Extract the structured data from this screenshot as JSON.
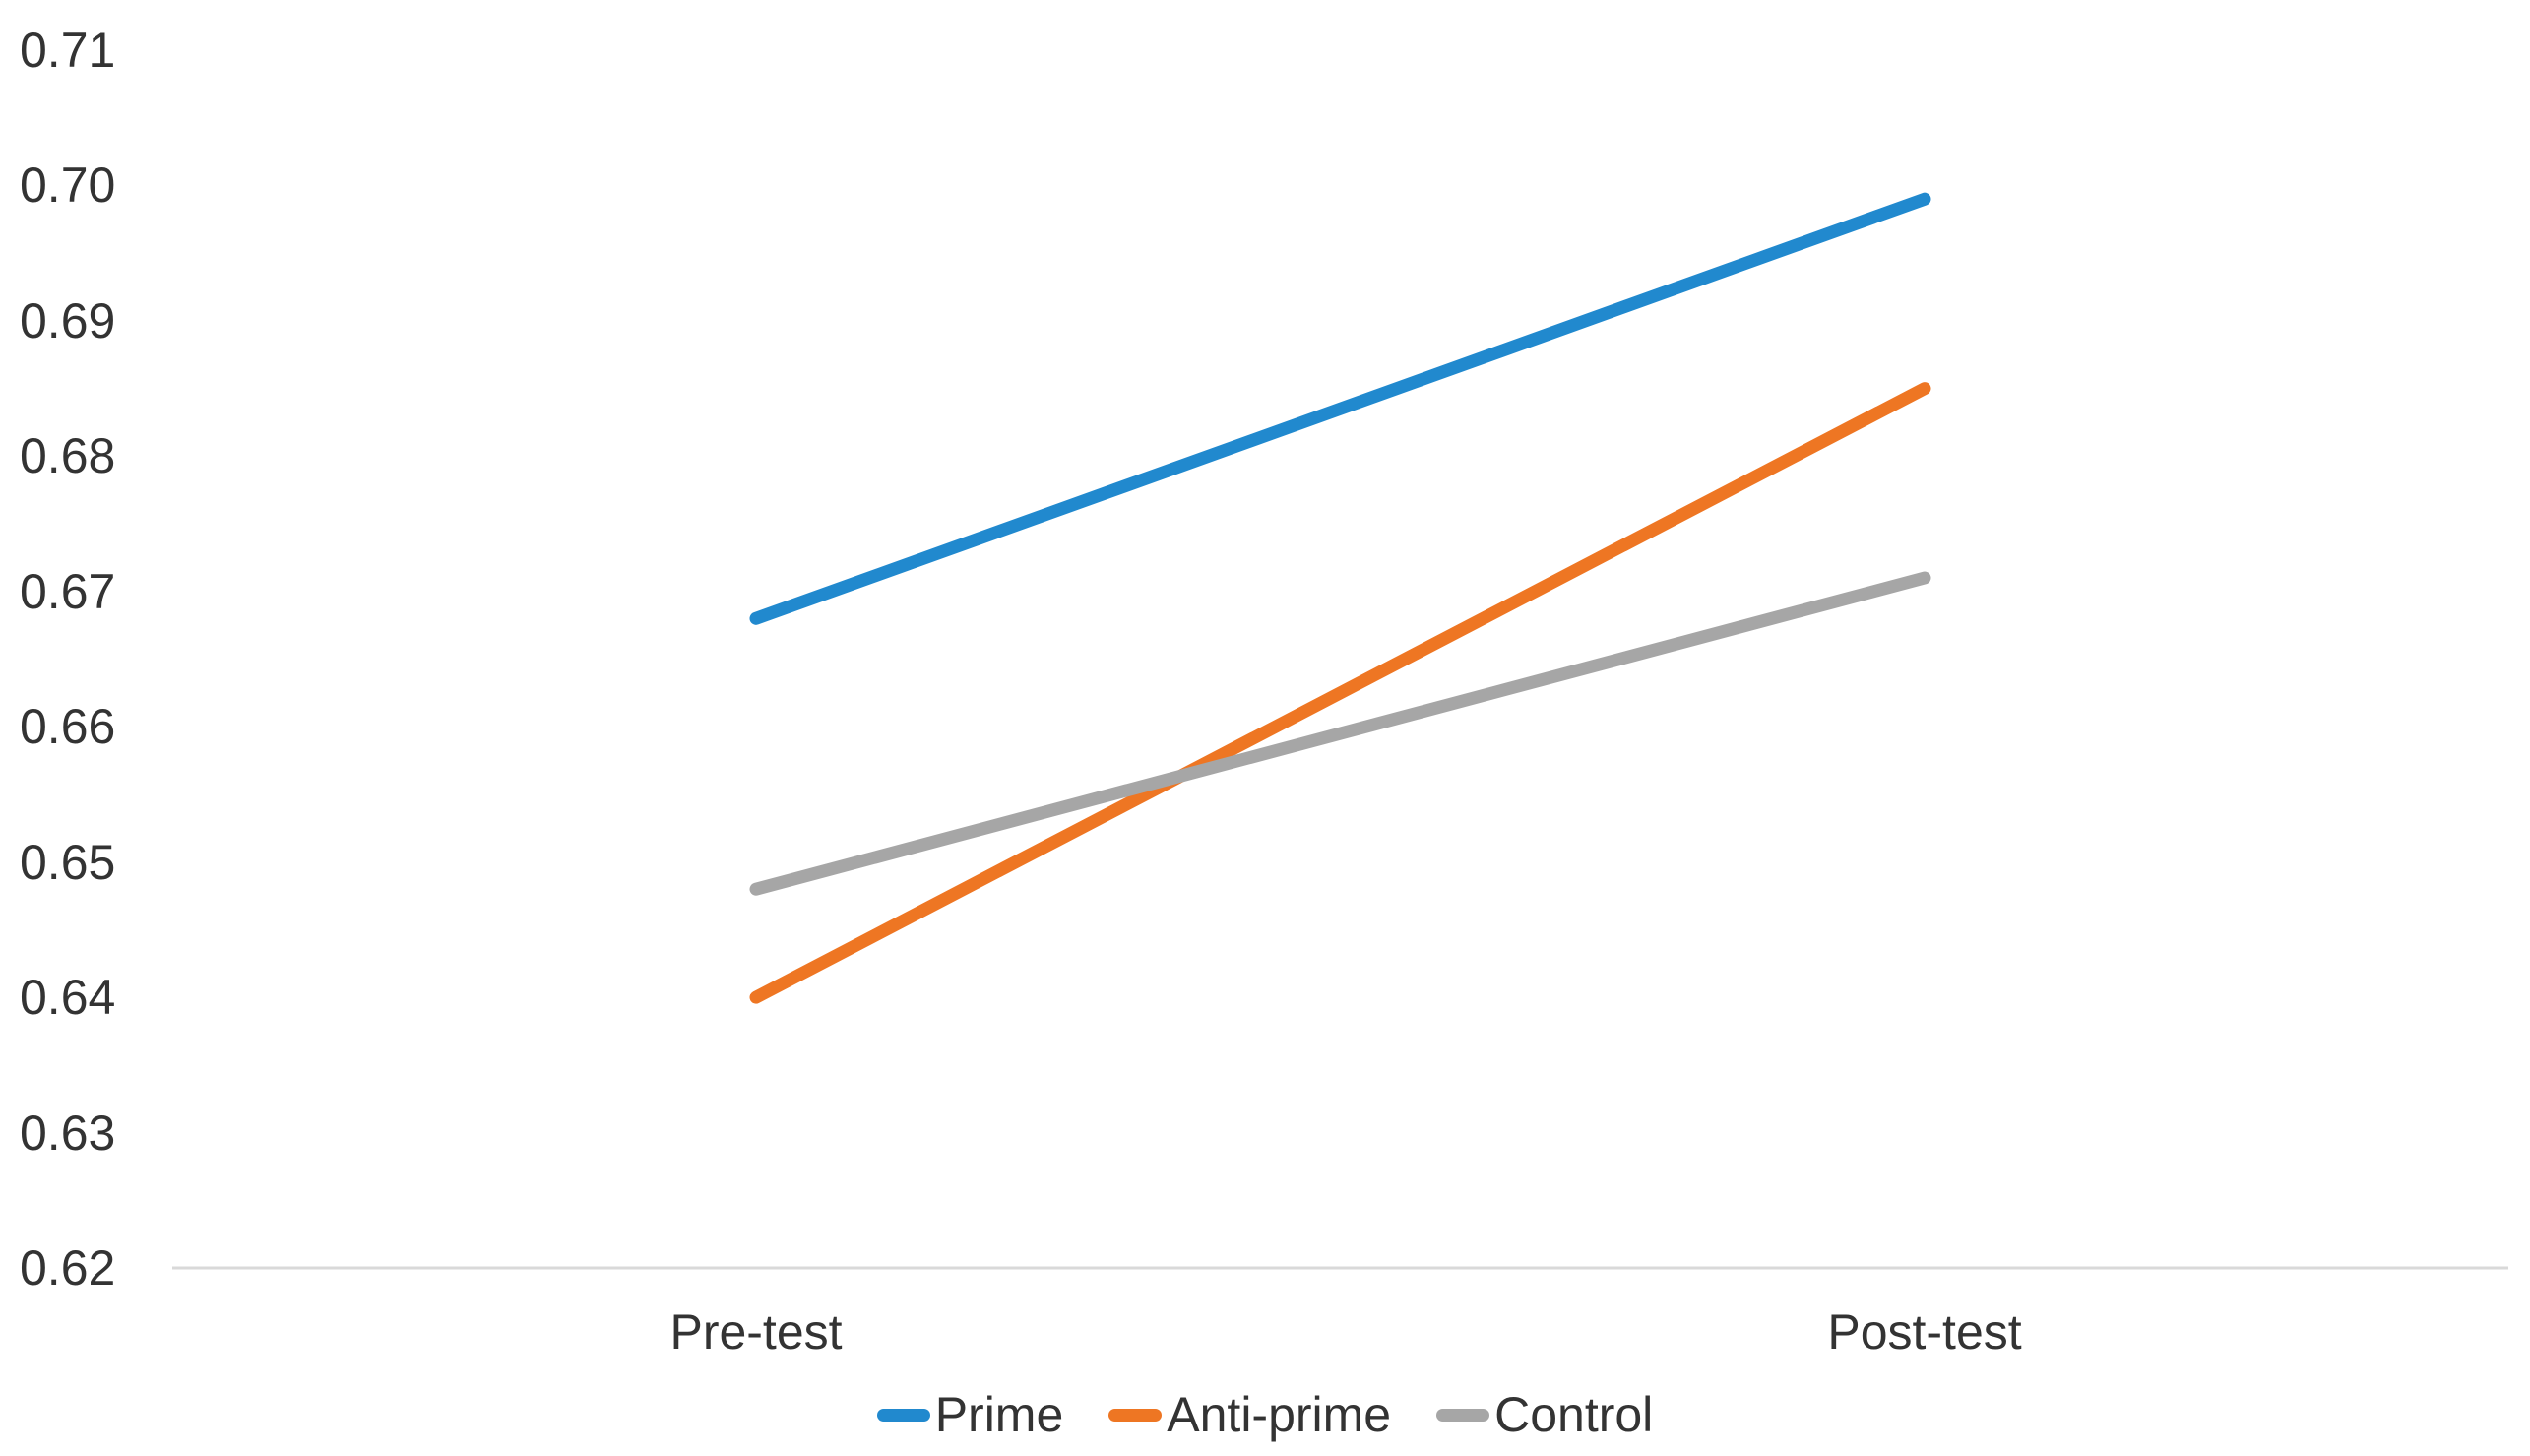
{
  "chart_data": {
    "type": "line",
    "title": "",
    "xlabel": "",
    "ylabel": "",
    "categories": [
      "Pre-test",
      "Post-test"
    ],
    "series": [
      {
        "name": "Prime",
        "values": [
          0.668,
          0.699
        ],
        "color": "#2189CE"
      },
      {
        "name": "Anti-prime",
        "values": [
          0.64,
          0.685
        ],
        "color": "#EE7623"
      },
      {
        "name": "Control",
        "values": [
          0.648,
          0.671
        ],
        "color": "#A6A6A6"
      }
    ],
    "ylim": [
      0.62,
      0.71
    ],
    "y_tick_step": 0.01,
    "y_tick_labels": [
      "0.71",
      "0.70",
      "0.69",
      "0.68",
      "0.67",
      "0.66",
      "0.65",
      "0.64",
      "0.63",
      "0.62"
    ],
    "grid": false,
    "legend_position": "bottom",
    "axis_line_color": "#D9D9D9",
    "text_color": "#333333",
    "background_color": "#FFFFFF"
  }
}
